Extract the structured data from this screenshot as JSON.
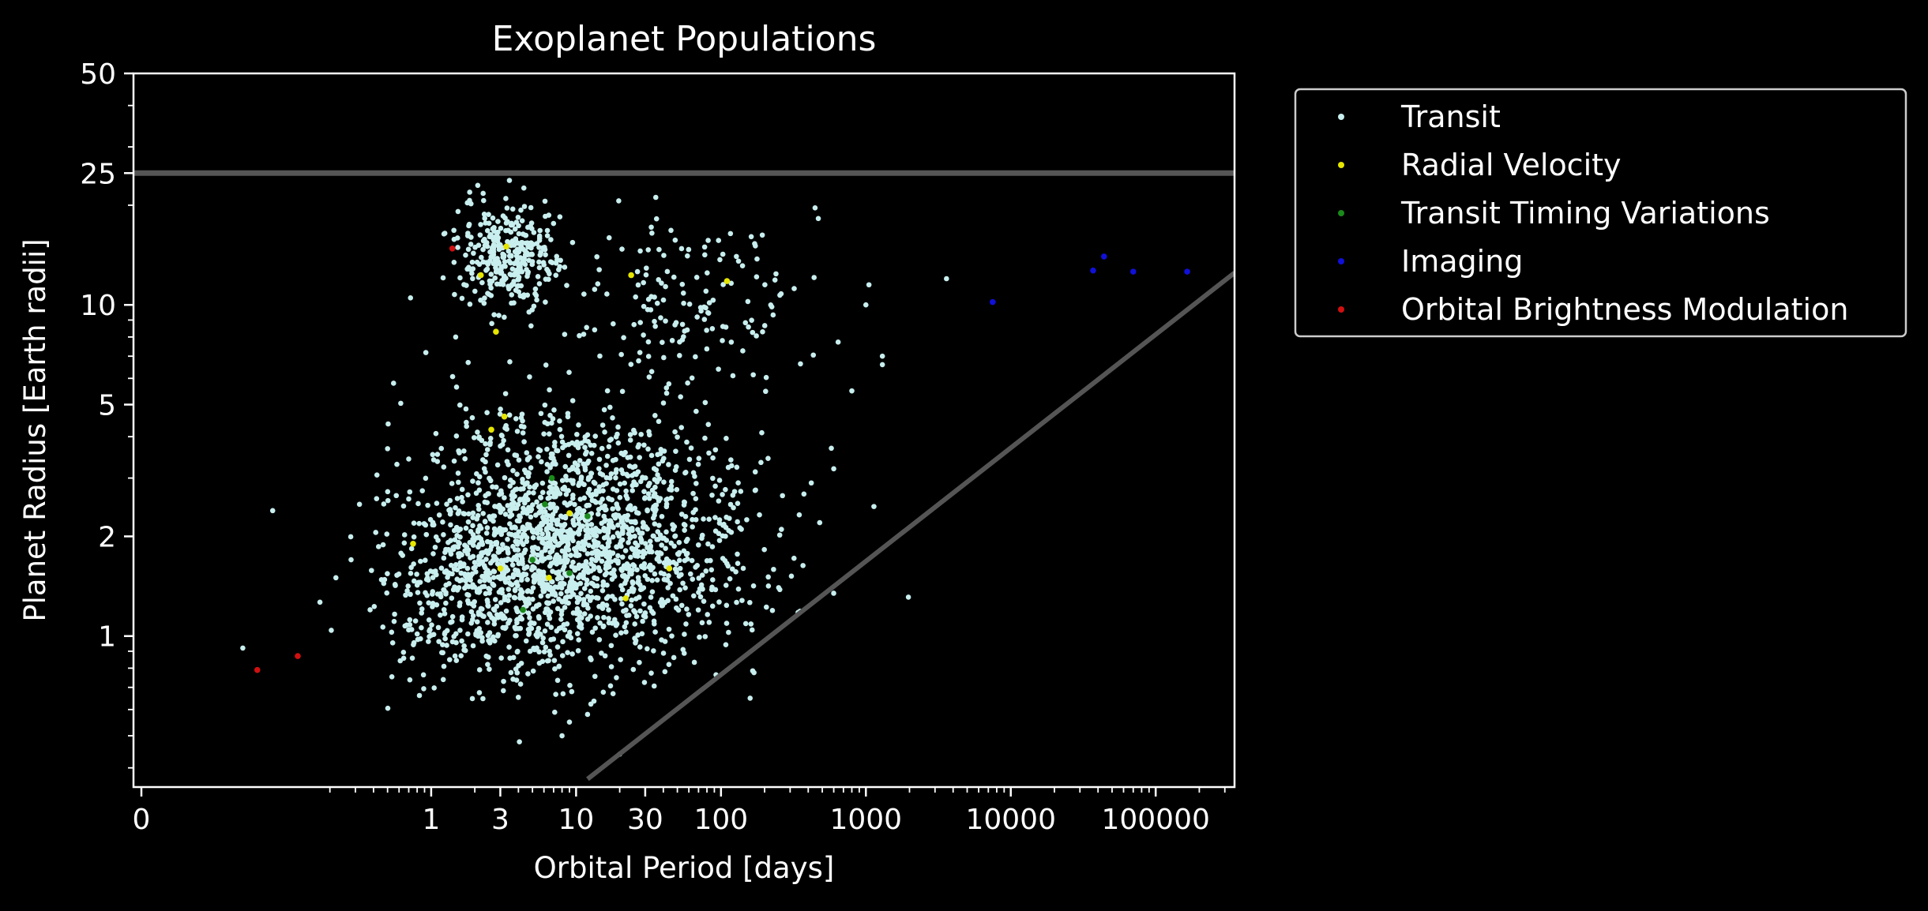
{
  "chart_data": {
    "type": "scatter",
    "title": "Exoplanet Populations",
    "xlabel": "Orbital Period [days]",
    "ylabel": "Planet Radius [Earth radii]",
    "xscale": "log (symlog near 0)",
    "yscale": "log",
    "xlim": [
      0,
      350000
    ],
    "ylim": [
      0.35,
      50
    ],
    "x_ticks": [
      {
        "value": 0,
        "label": "0"
      },
      {
        "value": 1,
        "label": "1"
      },
      {
        "value": 3,
        "label": "3"
      },
      {
        "value": 10,
        "label": "10"
      },
      {
        "value": 30,
        "label": "30"
      },
      {
        "value": 100,
        "label": "100"
      },
      {
        "value": 1000,
        "label": "1000"
      },
      {
        "value": 10000,
        "label": "10000"
      },
      {
        "value": 100000,
        "label": "100000"
      }
    ],
    "y_ticks": [
      {
        "value": 1,
        "label": "1"
      },
      {
        "value": 2,
        "label": "2"
      },
      {
        "value": 5,
        "label": "5"
      },
      {
        "value": 10,
        "label": "10"
      },
      {
        "value": 25,
        "label": "25"
      },
      {
        "value": 50,
        "label": "50"
      }
    ],
    "grid": false,
    "legend_position": "outside-right-top",
    "reference_lines": [
      {
        "kind": "horizontal",
        "y": 25,
        "color": "#555555"
      },
      {
        "kind": "diagonal",
        "from": [
          12,
          0.37
        ],
        "to": [
          350000,
          12.5
        ],
        "color": "#555555"
      }
    ],
    "series": [
      {
        "name": "Transit",
        "color": "#c8eeee",
        "clusters": [
          {
            "x_center": 11,
            "y_center": 2.0,
            "x_spread_dex": 0.55,
            "y_spread_dex": 0.18,
            "count": 1700
          },
          {
            "x_center": 2.5,
            "y_center": 1.3,
            "x_spread_dex": 0.4,
            "y_spread_dex": 0.13,
            "count": 450
          },
          {
            "x_center": 3.4,
            "y_center": 14,
            "x_spread_dex": 0.18,
            "y_spread_dex": 0.08,
            "count": 330
          },
          {
            "x_center": 60,
            "y_center": 10,
            "x_spread_dex": 0.4,
            "y_spread_dex": 0.12,
            "count": 150
          }
        ],
        "points": [
          {
            "x": 0.07,
            "y": 0.92
          },
          {
            "x": 0.22,
            "y": 1.5
          },
          {
            "x": 0.28,
            "y": 1.7
          },
          {
            "x": 0.32,
            "y": 2.5
          },
          {
            "x": 0.42,
            "y": 2.6
          },
          {
            "x": 0.55,
            "y": 5.8
          },
          {
            "x": 0.58,
            "y": 3.3
          },
          {
            "x": 0.72,
            "y": 10.5
          },
          {
            "x": 1.8,
            "y": 6.7
          },
          {
            "x": 18,
            "y": 0.67
          },
          {
            "x": 20,
            "y": 0.44
          },
          {
            "x": 8,
            "y": 0.5
          },
          {
            "x": 9,
            "y": 0.55
          },
          {
            "x": 12,
            "y": 0.58
          },
          {
            "x": 600,
            "y": 3.2
          },
          {
            "x": 800,
            "y": 5.5
          },
          {
            "x": 1000,
            "y": 10
          },
          {
            "x": 1050,
            "y": 11.5
          },
          {
            "x": 1300,
            "y": 6.6
          },
          {
            "x": 1300,
            "y": 7.0
          },
          {
            "x": 3600,
            "y": 12
          },
          {
            "x": 320,
            "y": 11.2
          },
          {
            "x": 260,
            "y": 10.8
          },
          {
            "x": 480,
            "y": 2.2
          },
          {
            "x": 420,
            "y": 2.9
          },
          {
            "x": 250,
            "y": 1.4
          }
        ]
      },
      {
        "name": "Radial Velocity",
        "color": "#e5e500",
        "points": [
          {
            "x": 3.3,
            "y": 15
          },
          {
            "x": 2.2,
            "y": 12.3
          },
          {
            "x": 2.8,
            "y": 8.3
          },
          {
            "x": 3.2,
            "y": 4.6
          },
          {
            "x": 2.6,
            "y": 4.2
          },
          {
            "x": 0.75,
            "y": 1.9
          },
          {
            "x": 3.0,
            "y": 1.6
          },
          {
            "x": 6.5,
            "y": 1.5
          },
          {
            "x": 9,
            "y": 2.35
          },
          {
            "x": 22,
            "y": 1.3
          },
          {
            "x": 44,
            "y": 1.6
          },
          {
            "x": 24,
            "y": 12.3
          },
          {
            "x": 110,
            "y": 11.8
          }
        ]
      },
      {
        "name": "Transit Timing Variations",
        "color": "#1a8a1a",
        "points": [
          {
            "x": 6.8,
            "y": 3.0
          },
          {
            "x": 6.1,
            "y": 2.5
          },
          {
            "x": 12,
            "y": 2.3
          },
          {
            "x": 5.0,
            "y": 1.7
          },
          {
            "x": 9.0,
            "y": 1.55
          },
          {
            "x": 4.3,
            "y": 1.2
          }
        ]
      },
      {
        "name": "Imaging",
        "color": "#1010d8",
        "points": [
          {
            "x": 7500,
            "y": 10.2
          },
          {
            "x": 37000,
            "y": 12.7
          },
          {
            "x": 44000,
            "y": 14
          },
          {
            "x": 70000,
            "y": 12.6
          },
          {
            "x": 165000,
            "y": 12.6
          }
        ]
      },
      {
        "name": "Orbital Brightness Modulation",
        "color": "#d01010",
        "points": [
          {
            "x": 1.4,
            "y": 14.8
          },
          {
            "x": 0.12,
            "y": 0.87
          },
          {
            "x": 0.08,
            "y": 0.79
          }
        ]
      }
    ]
  }
}
